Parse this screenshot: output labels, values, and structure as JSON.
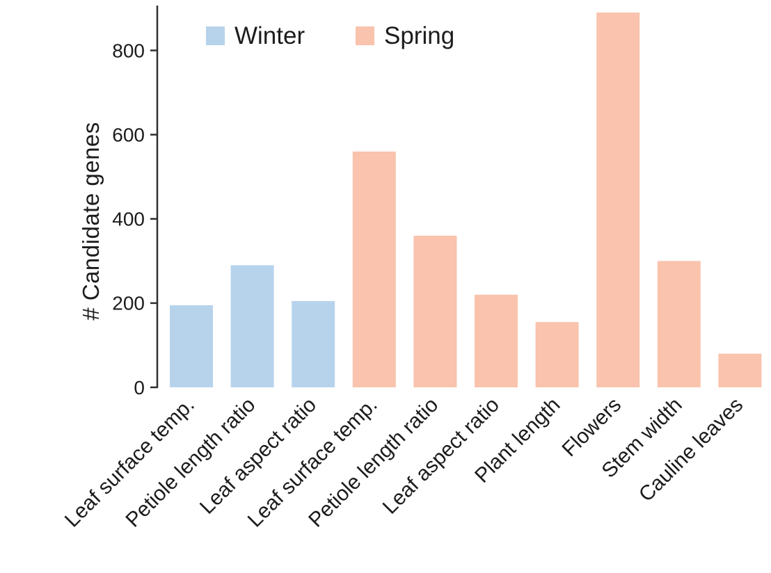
{
  "colors": {
    "winter": "#b7d3ec",
    "spring": "#f9c3ad",
    "axis": "#2e2e2e",
    "text": "#1c1c1c",
    "background": "#ffffff"
  },
  "chart_data": {
    "type": "bar",
    "title": "",
    "xlabel": "",
    "ylabel": "# Candidate genes",
    "ylim": [
      0,
      900
    ],
    "yticks": [
      0,
      200,
      400,
      600,
      800
    ],
    "grid": false,
    "legend_position": "top",
    "legend": [
      {
        "label": "Winter",
        "color": "#b7d3ec"
      },
      {
        "label": "Spring",
        "color": "#f9c3ad"
      }
    ],
    "categories": [
      "Leaf surface temp.",
      "Petiole length ratio",
      "Leaf aspect ratio",
      "Leaf surface temp.",
      "Petiole length ratio",
      "Leaf aspect ratio",
      "Plant length",
      "Flowers",
      "Stem width",
      "Cauline leaves"
    ],
    "bars": [
      {
        "category": "Leaf surface temp.",
        "series": "Winter",
        "value": 195
      },
      {
        "category": "Petiole length ratio",
        "series": "Winter",
        "value": 290
      },
      {
        "category": "Leaf aspect ratio",
        "series": "Winter",
        "value": 205
      },
      {
        "category": "Leaf surface temp.",
        "series": "Spring",
        "value": 560
      },
      {
        "category": "Petiole length ratio",
        "series": "Spring",
        "value": 360
      },
      {
        "category": "Leaf aspect ratio",
        "series": "Spring",
        "value": 220
      },
      {
        "category": "Plant length",
        "series": "Spring",
        "value": 155
      },
      {
        "category": "Flowers",
        "series": "Spring",
        "value": 890
      },
      {
        "category": "Stem width",
        "series": "Spring",
        "value": 300
      },
      {
        "category": "Cauline leaves",
        "series": "Spring",
        "value": 80
      }
    ]
  }
}
